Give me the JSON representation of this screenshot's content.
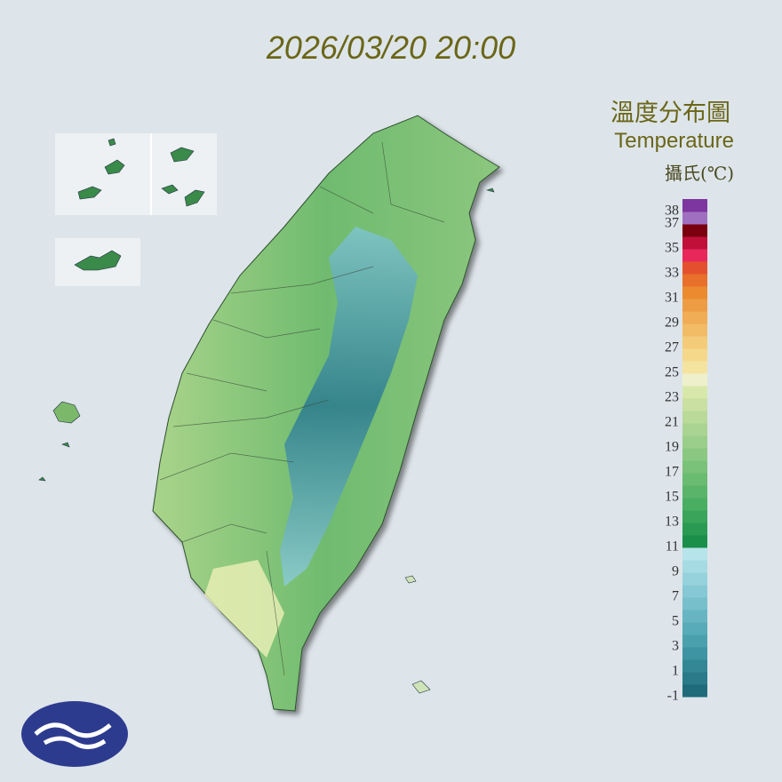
{
  "header": {
    "timestamp": "2026/03/20 20:00"
  },
  "legend": {
    "title_zh": "溫度分布圖",
    "title_en": "Temperature",
    "unit": "攝氏(℃)",
    "ticks": [
      -1,
      1,
      3,
      5,
      7,
      9,
      11,
      13,
      15,
      17,
      19,
      21,
      23,
      25,
      27,
      29,
      31,
      33,
      35,
      37,
      38
    ],
    "colors": [
      "#1f6b7a",
      "#2a7a8a",
      "#348896",
      "#3e94a2",
      "#4ba0ad",
      "#58abb8",
      "#67b5c2",
      "#76bfcb",
      "#86c9d4",
      "#96d2dc",
      "#a6dbe3",
      "#b6e4ea",
      "#1a8f4a",
      "#2a9a52",
      "#3aa45a",
      "#4aae62",
      "#5ab56a",
      "#6abc72",
      "#7ac27a",
      "#8ac882",
      "#9ace8a",
      "#aad492",
      "#bada9a",
      "#cae0a2",
      "#d8e8aa",
      "#eef0cc",
      "#f5e3a0",
      "#f5d88a",
      "#f4cb78",
      "#f2bc66",
      "#f0ad55",
      "#ee9c44",
      "#ec8a30",
      "#e8702a",
      "#e4502e",
      "#e8285a",
      "#c0103a",
      "#7a0010",
      "#a070c0",
      "#7d35a0"
    ]
  }
}
